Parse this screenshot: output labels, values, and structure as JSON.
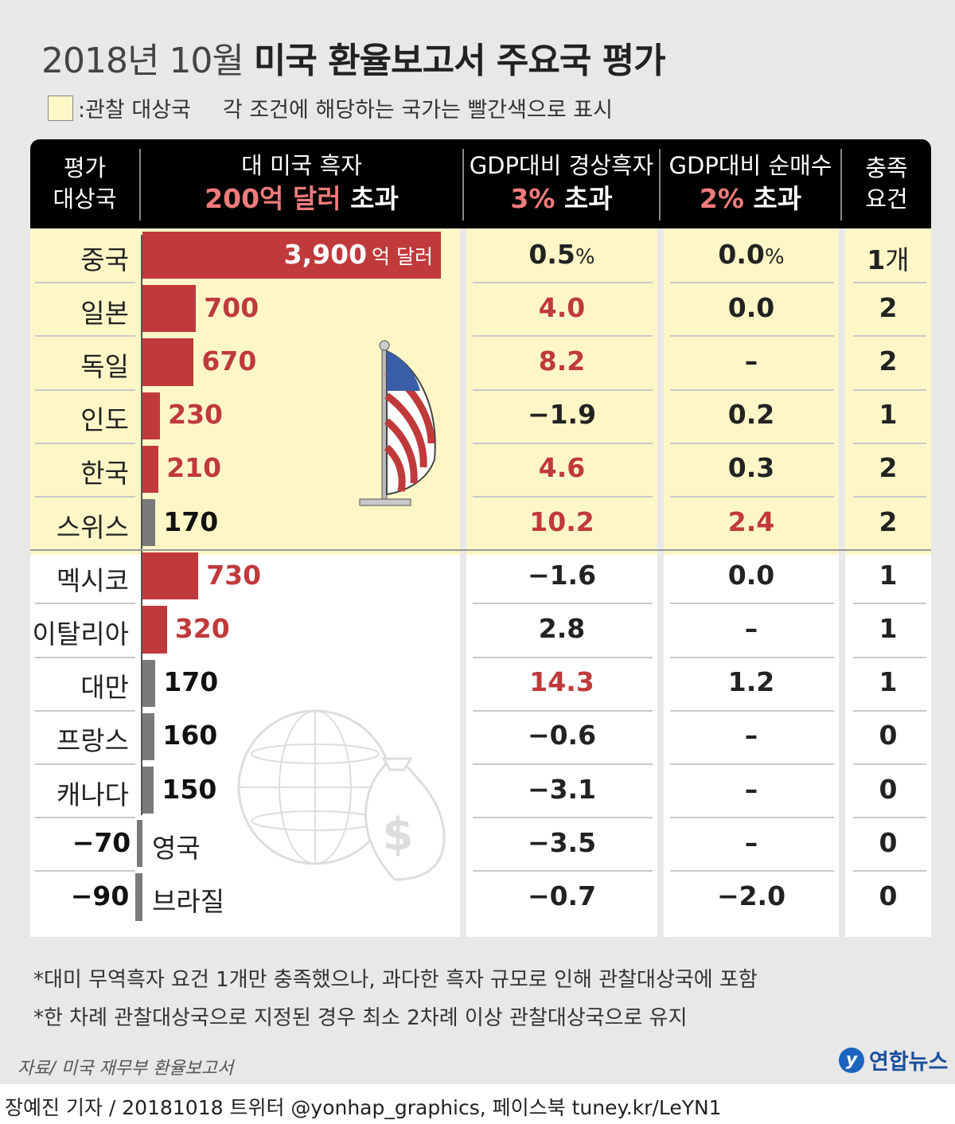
{
  "title": {
    "prefix": "2018년 10월 ",
    "main": "미국 환율보고서 주요국 평가"
  },
  "legend": {
    "swatch_label": ":관찰 대상국",
    "note": "각 조건에 해당하는 국가는 빨간색으로 표시"
  },
  "header": {
    "col1": [
      "평가",
      "대상국"
    ],
    "col2": {
      "line1": "대 미국 흑자",
      "red": "200억 달러",
      "rest": " 초과"
    },
    "col3": {
      "line1": "GDP대비 경상흑자",
      "red": "3%",
      "rest": " 초과"
    },
    "col4": {
      "line1": "GDP대비 순매수",
      "red": "2%",
      "rest": " 초과"
    },
    "col5": [
      "충족",
      "요건"
    ]
  },
  "colors": {
    "red": "#c0393b",
    "gray": "#7a7a7a",
    "observe_bg": "#fdf7c8"
  },
  "chart_data": {
    "type": "table",
    "unit": "억 달러",
    "observed_count": 6,
    "rows": [
      {
        "country": "중국",
        "surplus": 3900,
        "surplus_label": "3,900",
        "surplus_unit": "억 달러",
        "surplus_red": true,
        "current": "0.5",
        "current_unit": "%",
        "current_red": false,
        "fx": "0.0",
        "fx_unit": "%",
        "fx_red": false,
        "met": "1",
        "met_unit": "개"
      },
      {
        "country": "일본",
        "surplus": 700,
        "surplus_label": "700",
        "surplus_red": true,
        "current": "4.0",
        "current_red": true,
        "fx": "0.0",
        "fx_red": false,
        "met": "2"
      },
      {
        "country": "독일",
        "surplus": 670,
        "surplus_label": "670",
        "surplus_red": true,
        "current": "8.2",
        "current_red": true,
        "fx": "–",
        "fx_red": false,
        "met": "2"
      },
      {
        "country": "인도",
        "surplus": 230,
        "surplus_label": "230",
        "surplus_red": true,
        "current": "−1.9",
        "current_red": false,
        "fx": "0.2",
        "fx_red": false,
        "met": "1"
      },
      {
        "country": "한국",
        "surplus": 210,
        "surplus_label": "210",
        "surplus_red": true,
        "current": "4.6",
        "current_red": true,
        "fx": "0.3",
        "fx_red": false,
        "met": "2"
      },
      {
        "country": "스위스",
        "surplus": 170,
        "surplus_label": "170",
        "surplus_red": false,
        "current": "10.2",
        "current_red": true,
        "fx": "2.4",
        "fx_red": true,
        "met": "2"
      },
      {
        "country": "멕시코",
        "surplus": 730,
        "surplus_label": "730",
        "surplus_red": true,
        "current": "−1.6",
        "current_red": false,
        "fx": "0.0",
        "fx_red": false,
        "met": "1"
      },
      {
        "country": "이탈리아",
        "surplus": 320,
        "surplus_label": "320",
        "surplus_red": true,
        "current": "2.8",
        "current_red": false,
        "fx": "–",
        "fx_red": false,
        "met": "1"
      },
      {
        "country": "대만",
        "surplus": 170,
        "surplus_label": "170",
        "surplus_red": false,
        "current": "14.3",
        "current_red": true,
        "fx": "1.2",
        "fx_red": false,
        "met": "1"
      },
      {
        "country": "프랑스",
        "surplus": 160,
        "surplus_label": "160",
        "surplus_red": false,
        "current": "−0.6",
        "current_red": false,
        "fx": "–",
        "fx_red": false,
        "met": "0"
      },
      {
        "country": "캐나다",
        "surplus": 150,
        "surplus_label": "150",
        "surplus_red": false,
        "current": "−3.1",
        "current_red": false,
        "fx": "–",
        "fx_red": false,
        "met": "0"
      },
      {
        "country": "영국",
        "surplus": -70,
        "surplus_label": "−70",
        "surplus_red": false,
        "current": "−3.5",
        "current_red": false,
        "fx": "–",
        "fx_red": false,
        "met": "0"
      },
      {
        "country": "브라질",
        "surplus": -90,
        "surplus_label": "−90",
        "surplus_red": false,
        "current": "−0.7",
        "current_red": false,
        "fx": "−2.0",
        "fx_red": false,
        "met": "0"
      }
    ]
  },
  "notes": [
    "*대미 무역흑자 요건 1개만 충족했으나, 과다한 흑자 규모로 인해 관찰대상국에 포함",
    "*한 차례 관찰대상국으로 지정된 경우 최소 2차례 이상 관찰대상국으로 유지"
  ],
  "source": "자료/ 미국 재무부 환율보고서",
  "logo": {
    "mark": "y",
    "text": "연합뉴스"
  },
  "credit": "장예진 기자 / 20181018 트위터 @yonhap_graphics, 페이스북 tuney.kr/LeYN1"
}
